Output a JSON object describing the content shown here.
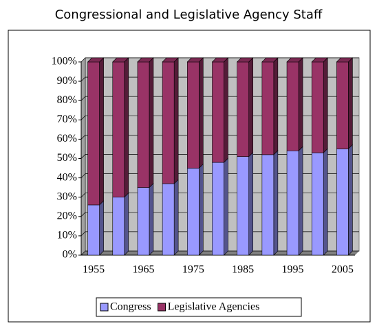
{
  "chart_data": {
    "type": "stacked_bar_100",
    "title": "Congressional and Legislative Agency Staff",
    "categories": [
      "1955",
      null,
      "1965",
      null,
      "1975",
      null,
      "1985",
      null,
      "1995",
      null,
      "2005"
    ],
    "series": [
      {
        "name": "Congress",
        "color": "#9999ff",
        "values": [
          26,
          30,
          35,
          37,
          45,
          48,
          51,
          52,
          54,
          53,
          55
        ]
      },
      {
        "name": "Legislative Agencies",
        "color": "#993366",
        "values": [
          74,
          70,
          65,
          63,
          55,
          52,
          49,
          48,
          46,
          47,
          45
        ]
      }
    ],
    "ylim": [
      0,
      100
    ],
    "yticks": [
      {
        "value": 0,
        "label": "0%"
      },
      {
        "value": 10,
        "label": "10%"
      },
      {
        "value": 20,
        "label": "20%"
      },
      {
        "value": 30,
        "label": "30%"
      },
      {
        "value": 40,
        "label": "40%"
      },
      {
        "value": 50,
        "label": "50%"
      },
      {
        "value": 60,
        "label": "60%"
      },
      {
        "value": 70,
        "label": "70%"
      },
      {
        "value": 80,
        "label": "80%"
      },
      {
        "value": 90,
        "label": "90%"
      },
      {
        "value": 100,
        "label": "100%"
      }
    ],
    "grid": true,
    "legend": "bottom"
  }
}
